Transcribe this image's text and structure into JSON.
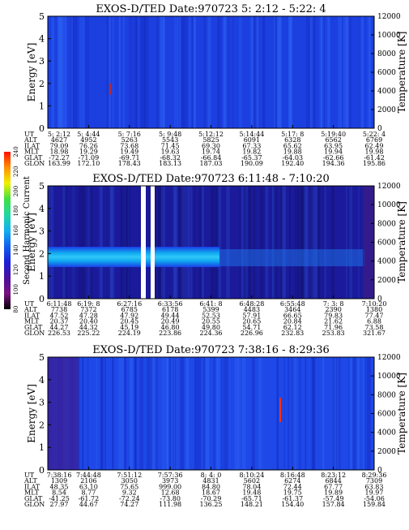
{
  "panels": [
    {
      "title": "EXOS-D/TED   Date:970723  5: 2:12 - 5:22: 4",
      "ylabel_left": "Energy [eV]",
      "ylabel_right": "Temperature [K]",
      "ylim": [
        0,
        5
      ],
      "yticks_left": [
        "0",
        "1",
        "2",
        "3",
        "4",
        "5"
      ],
      "yticks_right": [
        "0",
        "2000",
        "4000",
        "6000",
        "8000",
        "10000",
        "12000"
      ],
      "row_labels": [
        "UT",
        "ALT",
        "ILAT",
        "MLT",
        "GLAT",
        "GLON"
      ],
      "columns": [
        [
          "5: 2:12",
          "4627",
          "79.09",
          "18.98",
          "-72.27",
          "163.99"
        ],
        [
          "5: 4:44",
          "4952",
          "76.26",
          "19.29",
          "-71.09",
          "172.10"
        ],
        [
          "5: 7:16",
          "5263",
          "73.68",
          "19.49",
          "-69.71",
          "178.43"
        ],
        [
          "5: 9:48",
          "5543",
          "71.45",
          "19.63",
          "-68.32",
          "183.13"
        ],
        [
          "5:12:12",
          "5825",
          "69.30",
          "19.74",
          "-66.84",
          "187.03"
        ],
        [
          "5:14:44",
          "6091",
          "67.33",
          "19.82",
          "-65.37",
          "190.09"
        ],
        [
          "5:17: 8",
          "6328",
          "65.62",
          "19.88",
          "-64.03",
          "192.40"
        ],
        [
          "5:19:40",
          "6562",
          "63.95",
          "19.94",
          "-62.66",
          "194.36"
        ],
        [
          "5:22: 4",
          "6769",
          "62.49",
          "19.98",
          "-61.42",
          "195.86"
        ]
      ]
    },
    {
      "title": "EXOS-D/TED   Date:970723  6:11:48 - 7:10:20",
      "ylabel_left": "Energy [eV]",
      "ylabel_right": "Temperature [K]",
      "ylim": [
        0,
        5
      ],
      "yticks_left": [
        "0",
        "1",
        "2",
        "3",
        "4",
        "5"
      ],
      "yticks_right": [
        "0",
        "2000",
        "4000",
        "6000",
        "8000",
        "10000",
        "12000"
      ],
      "row_labels": [
        "UT",
        "ALT",
        "ILAT",
        "MLT",
        "GLAT",
        "GLON"
      ],
      "columns": [
        [
          "6:11:48",
          "7738",
          "47.52",
          "20.37",
          "44.27",
          "226.53"
        ],
        [
          "6:19: 8",
          "7372",
          "47.28",
          "20.40",
          "44.32",
          "225.22"
        ],
        [
          "6:27:16",
          "6785",
          "47.92",
          "20.45",
          "45.19",
          "224.19"
        ],
        [
          "6:33:56",
          "6178",
          "49.44",
          "20.49",
          "46.80",
          "223.86"
        ],
        [
          "6:41: 8",
          "5399",
          "52.53",
          "20.55",
          "49.80",
          "224.36"
        ],
        [
          "6:48:28",
          "4483",
          "57.91",
          "20.65",
          "54.71",
          "226.96"
        ],
        [
          "6:55:48",
          "3464",
          "66.65",
          "20.84",
          "62.12",
          "232.83"
        ],
        [
          "7: 3: 8",
          "2390",
          "79.83",
          "21.62",
          "71.96",
          "253.83"
        ],
        [
          "7:10:20",
          "1380",
          "77.47",
          "6.88",
          "73.58",
          "321.67"
        ]
      ]
    },
    {
      "title": "EXOS-D/TED   Date:970723  7:38:16 - 8:29:36",
      "ylabel_left": "Energy [eV]",
      "ylabel_right": "Temperature [K]",
      "ylim": [
        0,
        5
      ],
      "yticks_left": [
        "0",
        "1",
        "2",
        "3",
        "4",
        "5"
      ],
      "yticks_right": [
        "0",
        "2000",
        "4000",
        "6000",
        "8000",
        "10000",
        "12000"
      ],
      "row_labels": [
        "UT",
        "ALT",
        "ILAT",
        "MLT",
        "GLAT",
        "GLON"
      ],
      "columns": [
        [
          "7:38:16",
          "1309",
          "48.35",
          "8.54",
          "-41.25",
          "27.97"
        ],
        [
          "7:44:48",
          "2106",
          "63.10",
          "8.77",
          "-61.72",
          "44.67"
        ],
        [
          "7:51:12",
          "3050",
          "75.65",
          "9.32",
          "-72.24",
          "74.27"
        ],
        [
          "7:57:36",
          "3973",
          "999.00",
          "12.68",
          "-73.80",
          "111.98"
        ],
        [
          "8: 4: 0",
          "4831",
          "84.80",
          "18.67",
          "-70.29",
          "136.25"
        ],
        [
          "8:10:24",
          "5602",
          "78.04",
          "19.48",
          "-65.71",
          "148.21"
        ],
        [
          "8:16:48",
          "6274",
          "72.44",
          "19.75",
          "-61.37",
          "154.40"
        ],
        [
          "8:23:12",
          "6844",
          "67.77",
          "19.89",
          "-57.49",
          "157.84"
        ],
        [
          "8:29:36",
          "7309",
          "63.83",
          "19.97",
          "-54.06",
          "159.84"
        ]
      ]
    }
  ],
  "colorbar": {
    "label": "Second Harmonic Current",
    "ticks": [
      "80",
      "100",
      "120",
      "140",
      "160",
      "180",
      "200",
      "220",
      "240"
    ],
    "colors": [
      "#000000",
      "#7a1080",
      "#4a10a0",
      "#1a20d8",
      "#1060f0",
      "#10b0f0",
      "#20d8a0",
      "#40e040",
      "#f0f000",
      "#ff9000",
      "#ff1000"
    ]
  },
  "chart_data": [
    {
      "type": "heatmap",
      "title": "EXOS-D/TED   Date:970723  5: 2:12 - 5:22: 4",
      "xlabel": "UT",
      "ylabel": "Energy [eV]",
      "ylabel_right": "Temperature [K]",
      "x": [
        "5: 2:12",
        "5: 4:44",
        "5: 7:16",
        "5: 9:48",
        "5:12:12",
        "5:14:44",
        "5:17: 8",
        "5:19:40",
        "5:22: 4"
      ],
      "ylim": [
        0,
        5
      ],
      "ylim_right": [
        0,
        12000
      ],
      "colorbar_label": "Second Harmonic Current",
      "colorbar_range": [
        80,
        240
      ]
    },
    {
      "type": "heatmap",
      "title": "EXOS-D/TED   Date:970723  6:11:48 - 7:10:20",
      "xlabel": "UT",
      "ylabel": "Energy [eV]",
      "ylabel_right": "Temperature [K]",
      "x": [
        "6:11:48",
        "6:19: 8",
        "6:27:16",
        "6:33:56",
        "6:41: 8",
        "6:48:28",
        "6:55:48",
        "7: 3: 8",
        "7:10:20"
      ],
      "ylim": [
        0,
        5
      ],
      "ylim_right": [
        0,
        12000
      ],
      "colorbar_label": "Second Harmonic Current",
      "colorbar_range": [
        80,
        240
      ]
    },
    {
      "type": "heatmap",
      "title": "EXOS-D/TED   Date:970723  7:38:16 - 8:29:36",
      "xlabel": "UT",
      "ylabel": "Energy [eV]",
      "ylabel_right": "Temperature [K]",
      "x": [
        "7:38:16",
        "7:44:48",
        "7:51:12",
        "7:57:36",
        "8: 4: 0",
        "8:10:24",
        "8:16:48",
        "8:23:12",
        "8:29:36"
      ],
      "ylim": [
        0,
        5
      ],
      "ylim_right": [
        0,
        12000
      ],
      "colorbar_label": "Second Harmonic Current",
      "colorbar_range": [
        80,
        240
      ]
    }
  ]
}
